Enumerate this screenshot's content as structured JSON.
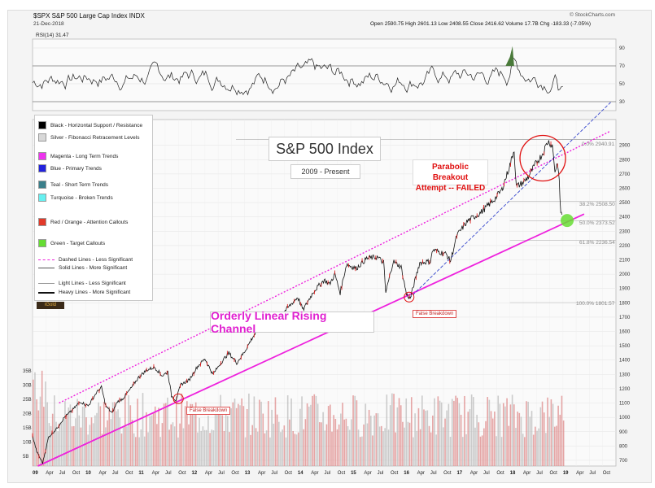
{
  "header": {
    "ticker_line": "$SPX S&P 500 Large Cap Index INDX",
    "date": "21-Dec-2018",
    "ohlc": "Open 2590.75  High 2601.13  Low 2408.55  Close 2416.62  Volume 17.7B  Chg -183.33 (-7.05%)",
    "source": "© StockCharts.com",
    "rsi_label": "RSI(14) 31.47"
  },
  "annotations": {
    "title": "S&P 500 Index",
    "subtitle": "2009 - Present",
    "channel": "Orderly Linear Rising Channel",
    "parabolic": "Parabolic Breakout\nAttempt -- FAILED",
    "false_breakdown": "False Breakdown",
    "fib_100": "100.0% 1801.57",
    "fib_618": "61.8% 2236.54",
    "fib_50": "50.0% 2373.52",
    "fib_382": "38.2% 2508.50",
    "fib_0": "0.0% 2940.91"
  },
  "legend": {
    "items": [
      {
        "kind": "swatch",
        "color": "#000000",
        "label": "Black - Horizontal Support / Resistance"
      },
      {
        "kind": "swatch",
        "color": "#d8d8d8",
        "label": "Silver - Fibonacci Retracement Levels"
      },
      {
        "kind": "swatch",
        "color": "#ee33ee",
        "label": "Magenta - Long Term Trends"
      },
      {
        "kind": "swatch",
        "color": "#2222dd",
        "label": "Blue - Primary Trends"
      },
      {
        "kind": "swatch",
        "color": "#3a7f8a",
        "label": "Teal - Short Term Trends"
      },
      {
        "kind": "swatch",
        "color": "#66f0f0",
        "label": "Turquoise - Broken Trends"
      },
      {
        "kind": "swatch",
        "color": "#e23a2a",
        "label": "Red / Orange - Attention Callouts"
      },
      {
        "kind": "swatch",
        "color": "#66dd33",
        "label": "Green - Target Callouts"
      },
      {
        "kind": "line",
        "style": "dashed",
        "label": "Dashed Lines - Less Significant"
      },
      {
        "kind": "line",
        "style": "solid",
        "label": "Solid Lines - More Significant"
      },
      {
        "kind": "line",
        "style": "light",
        "label": "Light Lines - Less Significant"
      },
      {
        "kind": "line",
        "style": "heavy",
        "label": "Heavy Lines - More Significant"
      }
    ],
    "logo": "iGold"
  },
  "colors": {
    "magenta": "#ee22dd",
    "blue_dash": "#3344cc",
    "red": "#e01010",
    "green": "#66dd33",
    "rsi_fill": "#4a7a3a"
  },
  "chart_data": {
    "type": "line",
    "title": "S&P 500 Index",
    "subtitle": "2009 - Present",
    "x_tick_labels": [
      "09",
      "Apr",
      "Jul",
      "Oct",
      "10",
      "Apr",
      "Jul",
      "Oct",
      "11",
      "Apr",
      "Jul",
      "Oct",
      "12",
      "Apr",
      "Jul",
      "Oct",
      "13",
      "Apr",
      "Jul",
      "Oct",
      "14",
      "Apr",
      "Jul",
      "Oct",
      "15",
      "Apr",
      "Jul",
      "Oct",
      "16",
      "Apr",
      "Jul",
      "Oct",
      "17",
      "Apr",
      "Jul",
      "Oct",
      "18",
      "Apr",
      "Jul",
      "Oct",
      "19",
      "Apr",
      "Jul",
      "Oct"
    ],
    "price_ticks": [
      700,
      800,
      900,
      1000,
      1100,
      1200,
      1300,
      1400,
      1500,
      1600,
      1700,
      1800,
      1900,
      2000,
      2100,
      2200,
      2300,
      2400,
      2500,
      2600,
      2700,
      2800,
      2900
    ],
    "rsi_ticks": [
      30,
      50,
      70,
      90
    ],
    "volume_ticks": [
      "5B",
      "10B",
      "15B",
      "20B",
      "25B",
      "30B",
      "35B"
    ],
    "ylim": [
      660,
      3080
    ],
    "xlim": [
      2009.0,
      2020.0
    ],
    "series": [
      {
        "name": "SPX",
        "points": [
          [
            2009.0,
            870
          ],
          [
            2009.08,
            760
          ],
          [
            2009.19,
            680
          ],
          [
            2009.3,
            860
          ],
          [
            2009.45,
            920
          ],
          [
            2009.6,
            1000
          ],
          [
            2009.75,
            1050
          ],
          [
            2009.9,
            1110
          ],
          [
            2010.05,
            1080
          ],
          [
            2010.2,
            1170
          ],
          [
            2010.3,
            1210
          ],
          [
            2010.38,
            1080
          ],
          [
            2010.5,
            1030
          ],
          [
            2010.6,
            1110
          ],
          [
            2010.7,
            1130
          ],
          [
            2010.85,
            1200
          ],
          [
            2011.0,
            1280
          ],
          [
            2011.15,
            1330
          ],
          [
            2011.3,
            1350
          ],
          [
            2011.45,
            1290
          ],
          [
            2011.55,
            1320
          ],
          [
            2011.62,
            1150
          ],
          [
            2011.7,
            1120
          ],
          [
            2011.8,
            1230
          ],
          [
            2011.95,
            1260
          ],
          [
            2012.1,
            1350
          ],
          [
            2012.25,
            1410
          ],
          [
            2012.4,
            1300
          ],
          [
            2012.55,
            1380
          ],
          [
            2012.7,
            1450
          ],
          [
            2012.85,
            1380
          ],
          [
            2013.0,
            1460
          ],
          [
            2013.15,
            1560
          ],
          [
            2013.35,
            1660
          ],
          [
            2013.5,
            1610
          ],
          [
            2013.65,
            1700
          ],
          [
            2013.85,
            1780
          ],
          [
            2014.0,
            1840
          ],
          [
            2014.1,
            1750
          ],
          [
            2014.3,
            1880
          ],
          [
            2014.5,
            1960
          ],
          [
            2014.6,
            1930
          ],
          [
            2014.7,
            2000
          ],
          [
            2014.8,
            1870
          ],
          [
            2014.92,
            2070
          ],
          [
            2015.1,
            2040
          ],
          [
            2015.3,
            2110
          ],
          [
            2015.5,
            2120
          ],
          [
            2015.62,
            2080
          ],
          [
            2015.66,
            1870
          ],
          [
            2015.8,
            2090
          ],
          [
            2015.95,
            2050
          ],
          [
            2016.05,
            1860
          ],
          [
            2016.12,
            1830
          ],
          [
            2016.3,
            2080
          ],
          [
            2016.5,
            2090
          ],
          [
            2016.55,
            2170
          ],
          [
            2016.8,
            2140
          ],
          [
            2016.88,
            2090
          ],
          [
            2017.0,
            2270
          ],
          [
            2017.2,
            2370
          ],
          [
            2017.45,
            2430
          ],
          [
            2017.7,
            2520
          ],
          [
            2017.85,
            2590
          ],
          [
            2018.0,
            2760
          ],
          [
            2018.08,
            2870
          ],
          [
            2018.12,
            2610
          ],
          [
            2018.25,
            2640
          ],
          [
            2018.35,
            2680
          ],
          [
            2018.5,
            2780
          ],
          [
            2018.6,
            2830
          ],
          [
            2018.72,
            2930
          ],
          [
            2018.8,
            2900
          ],
          [
            2018.85,
            2720
          ],
          [
            2018.9,
            2780
          ],
          [
            2018.93,
            2640
          ],
          [
            2018.96,
            2430
          ],
          [
            2018.98,
            2416
          ]
        ]
      }
    ],
    "trend_lines": [
      {
        "name": "Channel upper (dashed)",
        "from": [
          2009.5,
          1100
        ],
        "to": [
          2019.9,
          3000
        ]
      },
      {
        "name": "Channel lower (solid)",
        "from": [
          2009.1,
          660
        ],
        "to": [
          2019.4,
          2420
        ]
      },
      {
        "name": "Primary trend (dashed)",
        "from": [
          2016.1,
          1830
        ],
        "to": [
          2019.9,
          3200
        ]
      }
    ]
  }
}
